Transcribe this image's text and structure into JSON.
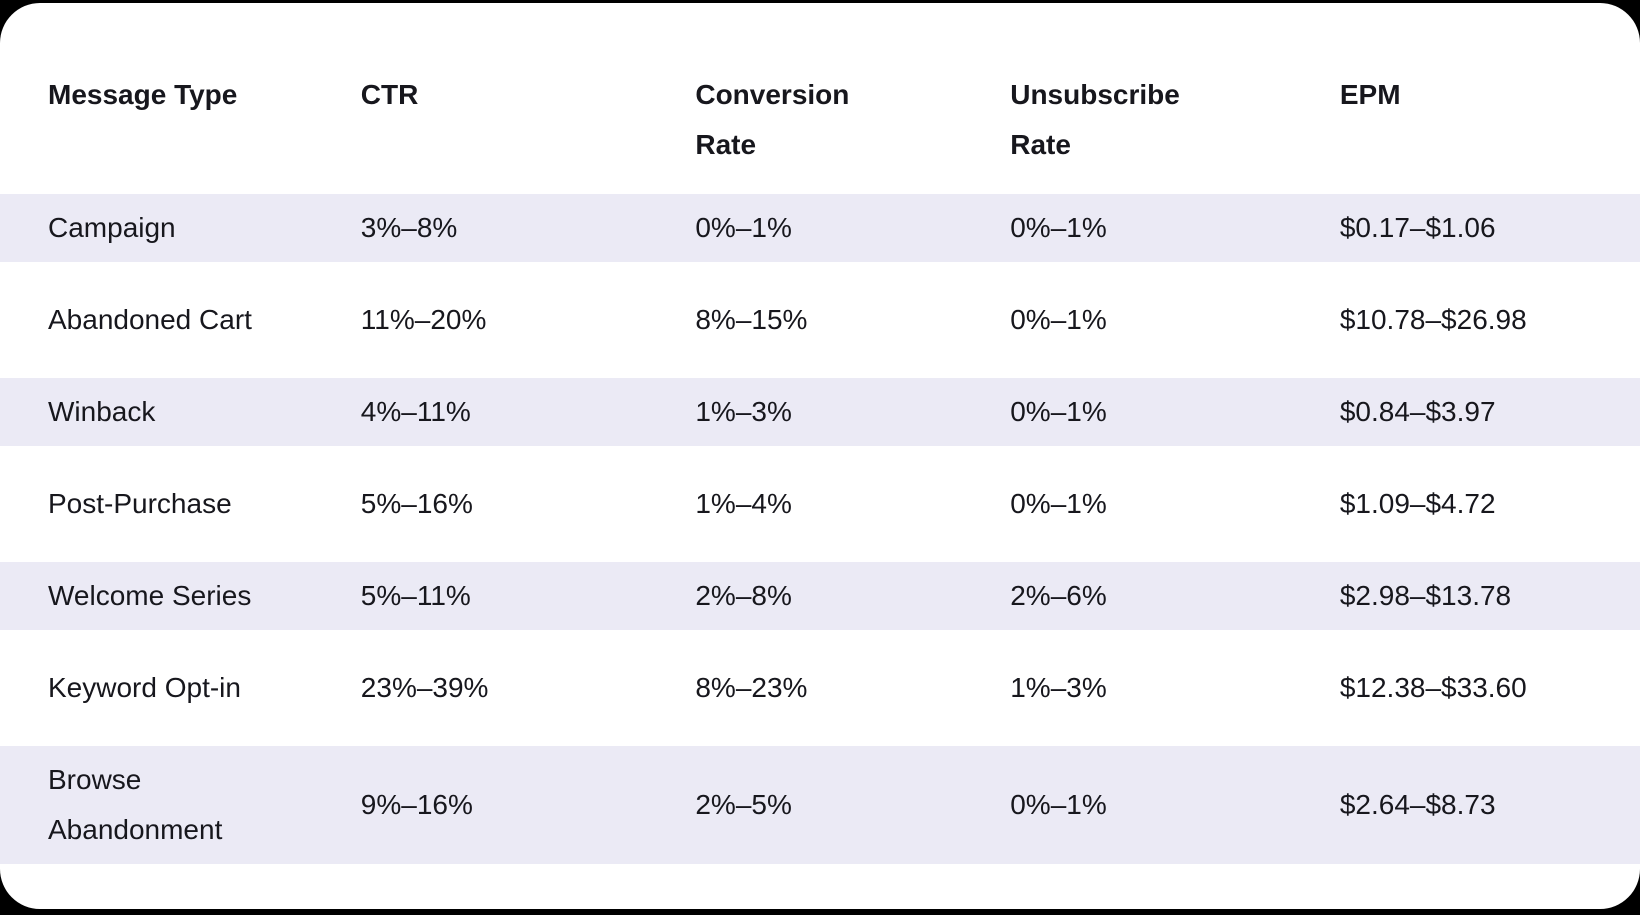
{
  "colors": {
    "page_bg": "#000000",
    "card_bg": "#FFFFFF",
    "row_stripe": "#EBEAF5",
    "text": "#17171D"
  },
  "chart_data": {
    "type": "table",
    "columns": [
      "Message Type",
      "CTR",
      "Conversion Rate",
      "Unsubscribe Rate",
      "EPM"
    ],
    "rows": [
      [
        "Campaign",
        "3%–8%",
        "0%–1%",
        "0%–1%",
        "$0.17–$1.06"
      ],
      [
        "Abandoned Cart",
        "11%–20%",
        "8%–15%",
        "0%–1%",
        "$10.78–$26.98"
      ],
      [
        "Winback",
        "4%–11%",
        "1%–3%",
        "0%–1%",
        "$0.84–$3.97"
      ],
      [
        "Post-Purchase",
        "5%–16%",
        "1%–4%",
        "0%–1%",
        "$1.09–$4.72"
      ],
      [
        "Welcome Series",
        "5%–11%",
        "2%–8%",
        "2%–6%",
        "$2.98–$13.78"
      ],
      [
        "Keyword Opt-in",
        "23%–39%",
        "8%–23%",
        "1%–3%",
        "$12.38–$33.60"
      ],
      [
        "Browse Abandonment",
        "9%–16%",
        "2%–5%",
        "0%–1%",
        "$2.64–$8.73"
      ]
    ]
  }
}
